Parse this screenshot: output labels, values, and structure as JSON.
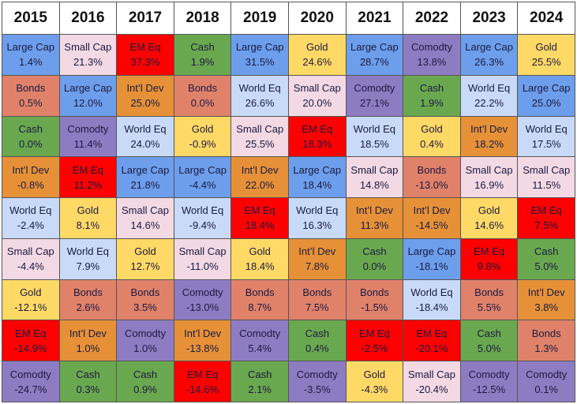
{
  "table": {
    "years": [
      "2015",
      "2016",
      "2017",
      "2018",
      "2019",
      "2020",
      "2021",
      "2022",
      "2023",
      "2024"
    ],
    "columns": [
      [
        [
          "Large Cap",
          "1.4%"
        ],
        [
          "Bonds",
          "0.5%"
        ],
        [
          "Cash",
          "0.0%"
        ],
        [
          "Int’l Dev",
          "-0.8%"
        ],
        [
          "World Eq",
          "-2.4%"
        ],
        [
          "Small Cap",
          "-4.4%"
        ],
        [
          "Gold",
          "-12.1%"
        ],
        [
          "EM Eq",
          "-14.9%"
        ],
        [
          "Comodty",
          "-24.7%"
        ]
      ],
      [
        [
          "Small Cap",
          "21.3%"
        ],
        [
          "Large Cap",
          "12.0%"
        ],
        [
          "Comodty",
          "11.4%"
        ],
        [
          "EM Eq",
          "11.2%"
        ],
        [
          "Gold",
          "8.1%"
        ],
        [
          "World Eq",
          "7.9%"
        ],
        [
          "Bonds",
          "2.6%"
        ],
        [
          "Int’l Dev",
          "1.0%"
        ],
        [
          "Cash",
          "0.3%"
        ]
      ],
      [
        [
          "EM Eq",
          "37.3%"
        ],
        [
          "Int’l Dev",
          "25.0%"
        ],
        [
          "World Eq",
          "24.0%"
        ],
        [
          "Large Cap",
          "21.8%"
        ],
        [
          "Small Cap",
          "14.6%"
        ],
        [
          "Gold",
          "12.7%"
        ],
        [
          "Bonds",
          "3.5%"
        ],
        [
          "Comodty",
          "1.0%"
        ],
        [
          "Cash",
          "0.9%"
        ]
      ],
      [
        [
          "Cash",
          "1.9%"
        ],
        [
          "Bonds",
          "0.0%"
        ],
        [
          "Gold",
          "-0.9%"
        ],
        [
          "Large Cap",
          "-4.4%"
        ],
        [
          "World Eq",
          "-9.4%"
        ],
        [
          "Small Cap",
          "-11.0%"
        ],
        [
          "Comodty",
          "-13.0%"
        ],
        [
          "Int’l Dev",
          "-13.8%"
        ],
        [
          "EM Eq",
          "-14.6%"
        ]
      ],
      [
        [
          "Large Cap",
          "31.5%"
        ],
        [
          "World Eq",
          "26.6%"
        ],
        [
          "Small Cap",
          "25.5%"
        ],
        [
          "Int’l Dev",
          "22.0%"
        ],
        [
          "EM Eq",
          "18.4%"
        ],
        [
          "Gold",
          "18.4%"
        ],
        [
          "Bonds",
          "8.7%"
        ],
        [
          "Comodty",
          "5.4%"
        ],
        [
          "Cash",
          "2.1%"
        ]
      ],
      [
        [
          "Gold",
          "24.6%"
        ],
        [
          "Small Cap",
          "20.0%"
        ],
        [
          "EM Eq",
          "18.3%"
        ],
        [
          "Large Cap",
          "18.4%"
        ],
        [
          "World Eq",
          "16.3%"
        ],
        [
          "Int’l Dev",
          "7.8%"
        ],
        [
          "Bonds",
          "7.5%"
        ],
        [
          "Cash",
          "0.4%"
        ],
        [
          "Comodty",
          "-3.5%"
        ]
      ],
      [
        [
          "Large Cap",
          "28.7%"
        ],
        [
          "Comodty",
          "27.1%"
        ],
        [
          "World Eq",
          "18.5%"
        ],
        [
          "Small Cap",
          "14.8%"
        ],
        [
          "Int’l Dev",
          "11.3%"
        ],
        [
          "Cash",
          "0.0%"
        ],
        [
          "Bonds",
          "-1.5%"
        ],
        [
          "EM Eq",
          "-2.5%"
        ],
        [
          "Gold",
          "-4.3%"
        ]
      ],
      [
        [
          "Comodty",
          "13.8%"
        ],
        [
          "Cash",
          "1.9%"
        ],
        [
          "Gold",
          "0.4%"
        ],
        [
          "Bonds",
          "-13.0%"
        ],
        [
          "Int’l Dev",
          "-14.5%"
        ],
        [
          "Large Cap",
          "-18.1%"
        ],
        [
          "World Eq",
          "-18.4%"
        ],
        [
          "EM Eq",
          "-20.1%"
        ],
        [
          "Small Cap",
          "-20.4%"
        ]
      ],
      [
        [
          "Large Cap",
          "26.3%"
        ],
        [
          "World Eq",
          "22.2%"
        ],
        [
          "Int’l Dev",
          "18.2%"
        ],
        [
          "Small Cap",
          "16.9%"
        ],
        [
          "Gold",
          "14.6%"
        ],
        [
          "EM Eq",
          "9.8%"
        ],
        [
          "Bonds",
          "5.5%"
        ],
        [
          "Cash",
          "5.0%"
        ],
        [
          "Comodty",
          "-12.5%"
        ]
      ],
      [
        [
          "Gold",
          "25.5%"
        ],
        [
          "Large Cap",
          "25.0%"
        ],
        [
          "World Eq",
          "17.5%"
        ],
        [
          "Small Cap",
          "11.5%"
        ],
        [
          "EM Eq",
          "7.5%"
        ],
        [
          "Cash",
          "5.0%"
        ],
        [
          "Int’l Dev",
          "3.8%"
        ],
        [
          "Bonds",
          "1.3%"
        ],
        [
          "Comodty",
          "0.1%"
        ]
      ]
    ],
    "colors": {
      "Large Cap": "#6d9eeb",
      "Small Cap": "#f3d9e4",
      "EM Eq": "#ff0000",
      "Cash": "#6aa84f",
      "Gold": "#ffd966",
      "Comodty": "#8e7cc3",
      "Bonds": "#e0826a",
      "Int’l Dev": "#e69138",
      "World Eq": "#c9daf8"
    }
  }
}
